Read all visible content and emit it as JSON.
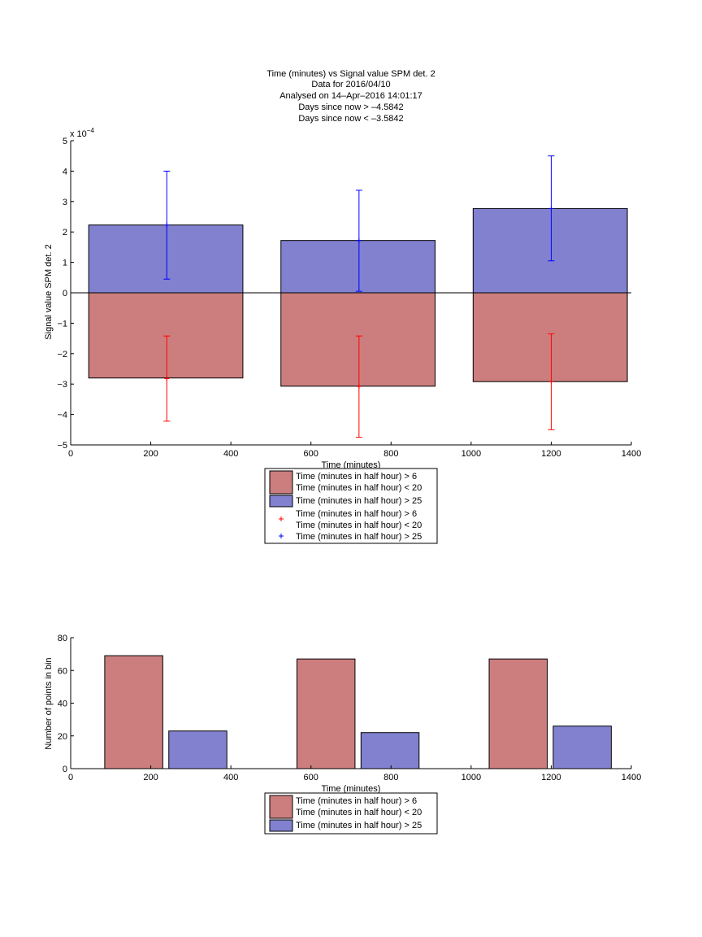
{
  "colors": {
    "negative_bar": "#cc7e7e",
    "positive_bar": "#8181cf",
    "neg_errorbar": "#ff0000",
    "pos_errorbar": "#0000ff",
    "axis": "#000000"
  },
  "chart_data": [
    {
      "type": "bar",
      "title_lines": [
        "Time (minutes) vs Signal value SPM det. 2",
        "Data for 2016/04/10",
        "Analysed on 14–Apr–2016 14:01:17",
        "Days since now > –4.5842",
        "Days since now < –3.5842"
      ],
      "xlabel": "Time (minutes)",
      "ylabel": "Signal value SPM det. 2",
      "y_exponent_label": "x 10",
      "y_exponent_power": "−4",
      "xlim": [
        0,
        1400
      ],
      "ylim": [
        -5,
        5
      ],
      "x_ticks": [
        0,
        200,
        400,
        600,
        800,
        1000,
        1200,
        1400
      ],
      "y_ticks": [
        -5,
        -4,
        -3,
        -2,
        -1,
        0,
        1,
        2,
        3,
        4,
        5
      ],
      "y_tick_labels": [
        "−5",
        "−4",
        "−3",
        "−2",
        "−1",
        "0",
        "1",
        "2",
        "3",
        "4",
        "5"
      ],
      "bar_ranges": [
        [
          45,
          430
        ],
        [
          525,
          910
        ],
        [
          1005,
          1390
        ]
      ],
      "series": [
        {
          "name": "Time (minutes in half hour) > 6\nTime (minutes in half hour) < 20",
          "kind": "bar",
          "values": [
            -2.8,
            -3.07,
            -2.92
          ]
        },
        {
          "name": "Time (minutes in half hour) > 25",
          "kind": "bar",
          "values": [
            2.23,
            1.72,
            2.77
          ]
        },
        {
          "name": "Time (minutes in half hour) > 6\nTime (minutes in half hour) < 20",
          "kind": "errorbar",
          "marker": "+",
          "x": [
            240,
            720,
            1200
          ],
          "y": [
            -2.82,
            -3.08,
            -2.92
          ],
          "low": [
            -4.22,
            -4.75,
            -4.5
          ],
          "high": [
            -1.42,
            -1.42,
            -1.35
          ]
        },
        {
          "name": "Time (minutes in half hour) > 25",
          "kind": "errorbar",
          "marker": "+",
          "x": [
            240,
            720,
            1200
          ],
          "y": [
            2.23,
            1.72,
            2.77
          ],
          "low": [
            0.45,
            0.05,
            1.05
          ],
          "high": [
            4.0,
            3.37,
            4.5
          ]
        }
      ],
      "legend": [
        {
          "lines": [
            "Time (minutes in half hour) > 6",
            "Time (minutes in half hour) < 20"
          ],
          "swatch": "negative_bar"
        },
        {
          "lines": [
            "Time (minutes in half hour) > 25"
          ],
          "swatch": "positive_bar"
        },
        {
          "lines": [
            "Time (minutes in half hour) > 6",
            "Time (minutes in half hour) < 20"
          ],
          "marker": "neg_errorbar"
        },
        {
          "lines": [
            "Time (minutes in half hour) > 25"
          ],
          "marker": "pos_errorbar"
        }
      ],
      "legend_placement": "below",
      "grid": false
    },
    {
      "type": "bar",
      "xlabel": "Time (minutes)",
      "ylabel": "Number of points in bin",
      "xlim": [
        0,
        1400
      ],
      "ylim": [
        0,
        80
      ],
      "x_ticks": [
        0,
        200,
        400,
        600,
        800,
        1000,
        1200,
        1400
      ],
      "y_ticks": [
        0,
        20,
        40,
        60,
        80
      ],
      "y_tick_labels": [
        "0",
        "20",
        "40",
        "60",
        "80"
      ],
      "series": [
        {
          "name": "Time (minutes in half hour) > 6\nTime (minutes in half hour) < 20",
          "bar_ranges": [
            [
              85,
              230
            ],
            [
              565,
              710
            ],
            [
              1045,
              1190
            ]
          ],
          "values": [
            69,
            67,
            67
          ]
        },
        {
          "name": "Time (minutes in half hour) > 25",
          "bar_ranges": [
            [
              245,
              390
            ],
            [
              725,
              870
            ],
            [
              1205,
              1350
            ]
          ],
          "values": [
            23,
            22,
            26
          ]
        }
      ],
      "legend": [
        {
          "lines": [
            "Time (minutes in half hour) > 6",
            "Time (minutes in half hour) < 20"
          ],
          "swatch": "negative_bar"
        },
        {
          "lines": [
            "Time (minutes in half hour) > 25"
          ],
          "swatch": "positive_bar"
        }
      ],
      "legend_placement": "below",
      "grid": false
    }
  ]
}
